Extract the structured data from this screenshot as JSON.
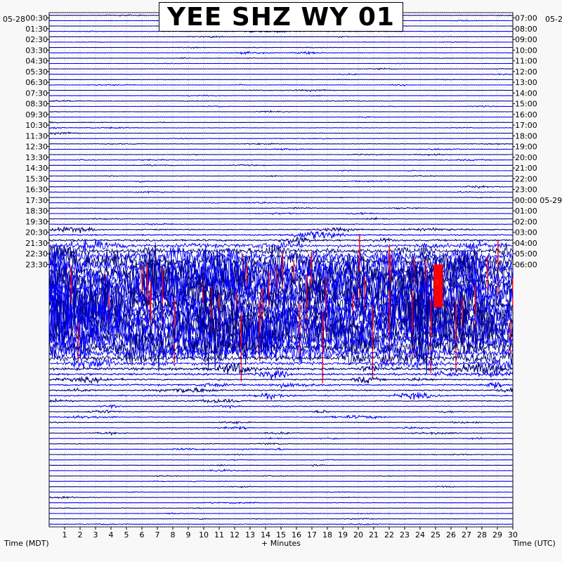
{
  "title": "YEE SHZ WY 01",
  "colors": {
    "background": "#f8f8f8",
    "plot_background": "#ffffff",
    "grid": "#a0a0a0",
    "trace_colors": [
      "#000080",
      "#0000ff"
    ],
    "clip_color": "#ff0000",
    "text": "#000000"
  },
  "chart_data": {
    "type": "line",
    "subtype": "helicorder",
    "title": "YEE SHZ WY 01",
    "xlabel": "+ Minutes",
    "x_ticks": [
      "1",
      "2",
      "3",
      "4",
      "5",
      "6",
      "7",
      "8",
      "9",
      "10",
      "11",
      "12",
      "13",
      "14",
      "15",
      "16",
      "17",
      "18",
      "19",
      "20",
      "21",
      "22",
      "23",
      "24",
      "25",
      "26",
      "27",
      "28",
      "29",
      "30"
    ],
    "xlim": [
      0,
      30
    ],
    "left_axis_label": "Time (MDT)",
    "right_axis_label": "Time (UTC)",
    "left_date": "05-28",
    "right_date_top": "05-2",
    "left_hour_labels": [
      "00:30",
      "01:30",
      "02:30",
      "03:30",
      "04:30",
      "05:30",
      "06:30",
      "07:30",
      "08:30",
      "09:30",
      "10:30",
      "11:30",
      "12:30",
      "13:30",
      "14:30",
      "15:30",
      "16:30",
      "17:30",
      "18:30",
      "19:30",
      "20:30",
      "21:30",
      "22:30",
      "23:30"
    ],
    "right_hour_labels": [
      "07:00",
      "08:00",
      "09:00",
      "10:00",
      "11:00",
      "12:00",
      "13:00",
      "14:00",
      "15:00",
      "16:00",
      "17:00",
      "18:00",
      "19:00",
      "20:00",
      "21:00",
      "22:00",
      "23:00",
      "00:00 05-29",
      "01:00",
      "02:00",
      "03:00",
      "04:00",
      "05:00",
      "06:00"
    ],
    "rows_per_hour": 2,
    "row_minutes": 30,
    "grid": true,
    "trace_amplitude_by_row": [
      0.6,
      0.6,
      0.5,
      1.0,
      0.6,
      0.5,
      0.6,
      0.8,
      0.5,
      0.5,
      0.6,
      0.5,
      0.6,
      0.8,
      0.6,
      0.6,
      0.6,
      0.7,
      0.6,
      0.5,
      0.6,
      1.0,
      0.6,
      0.6,
      0.7,
      0.6,
      0.7,
      0.6,
      0.7,
      0.6,
      0.6,
      0.6,
      0.8,
      0.8,
      0.6,
      0.7,
      0.6,
      0.8,
      0.6,
      0.7,
      2.0,
      2.5,
      3.5,
      6,
      9,
      14,
      20,
      28,
      30,
      32,
      32,
      30,
      32,
      32,
      32,
      30,
      32,
      34,
      40,
      40,
      30,
      26,
      22,
      16,
      10,
      6,
      5,
      4,
      3,
      3,
      2.5,
      2.5,
      2,
      1.5,
      1.5,
      1.2,
      1.2,
      1.0,
      1.0,
      0.8,
      0.8,
      0.8,
      0.7,
      0.7,
      0.6,
      0.6,
      0.6,
      0.6,
      0.6,
      0.6,
      0.6,
      0.6,
      0.6,
      0.6,
      0.6,
      0.6
    ],
    "clipped_rows": [
      47,
      48,
      49,
      50,
      51,
      52,
      53,
      54,
      55,
      56,
      57,
      58,
      59,
      60,
      61,
      62
    ]
  }
}
